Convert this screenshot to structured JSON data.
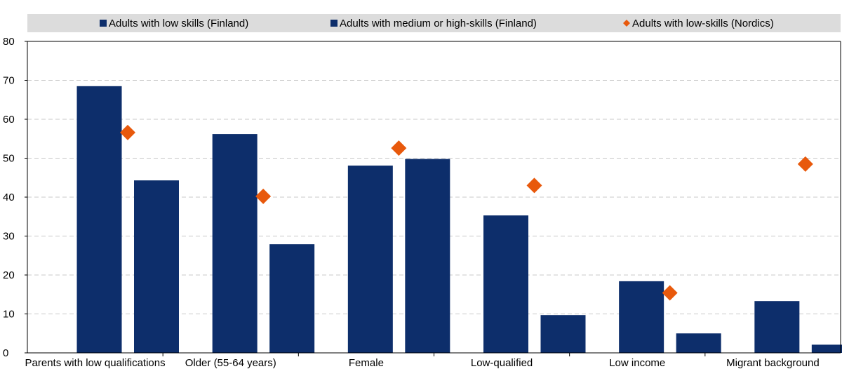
{
  "chart_data": {
    "type": "bar",
    "categories": [
      "Parents with low qualifications",
      "Older (55-64 years)",
      "Female",
      "Low-qualified",
      "Low income",
      "Migrant background"
    ],
    "series": [
      {
        "name": "Adults with low skills (Finland)",
        "kind": "bar",
        "color": "#0d2e6b",
        "marker": "square",
        "values": [
          68.5,
          56.2,
          48.1,
          35.3,
          18.4,
          13.3
        ]
      },
      {
        "name": "Adults with medium or high-skills (Finland)",
        "kind": "bar",
        "color": "#0d2e6b",
        "marker": "square",
        "values": [
          44.3,
          27.9,
          49.8,
          9.7,
          5.0,
          2.1
        ]
      },
      {
        "name": "Adults with low-skills (Nordics)",
        "kind": "marker",
        "color": "#e8590c",
        "marker": "diamond",
        "values": [
          56.6,
          40.2,
          52.6,
          43.0,
          15.4,
          48.5
        ]
      }
    ],
    "yticks": [
      0,
      10,
      20,
      30,
      40,
      50,
      60,
      70,
      80
    ],
    "ylim": [
      0,
      80
    ],
    "grid": true,
    "legend_position": "top",
    "legend_background": "#dcdcdc",
    "title": "",
    "xlabel": "",
    "ylabel": ""
  }
}
